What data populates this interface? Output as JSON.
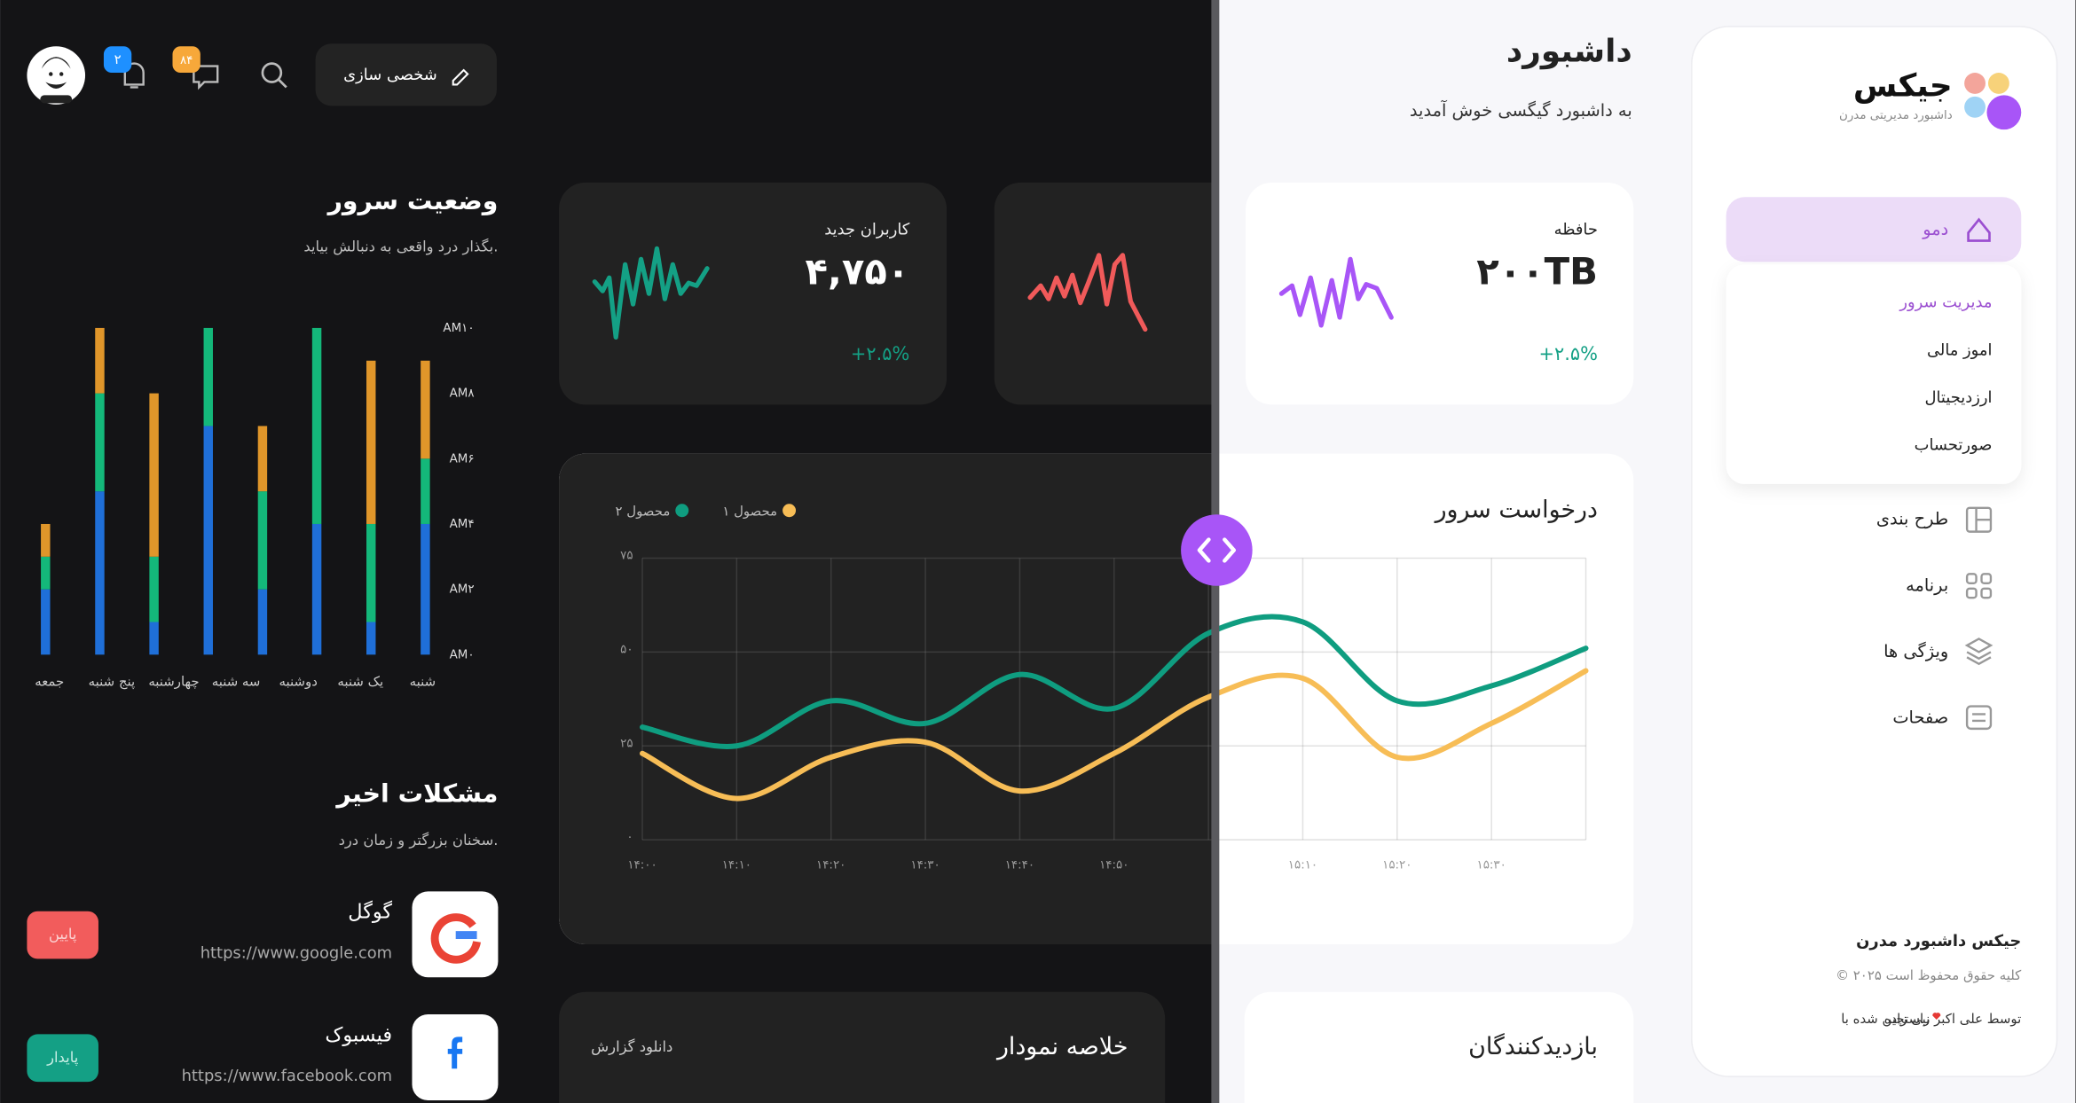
{
  "sidebar": {
    "brand": "جیکس",
    "tagline": "داشبورد مدیریتی مدرن",
    "menu": [
      {
        "label": "دمو",
        "submenu": [
          "مدیریت سرور",
          "اموز مالی",
          "ارزدیجیتال",
          "صورتحساب"
        ]
      },
      {
        "label": "طرح بندی"
      },
      {
        "label": "برنامه"
      },
      {
        "label": "ویژگی ها"
      },
      {
        "label": "صفحات"
      }
    ],
    "footer": {
      "title": "جیکس داشبورد مدرن",
      "copyright": "© ۲۰۲۵ کلیه حقوق محفوظ است",
      "credit_before": "راستچین شده با",
      "credit_after": "توسط علی اکبر نبی زاده"
    }
  },
  "header": {
    "title": "داشبورد",
    "subtitle": "به داشبورد گیگسی خوش آمدید",
    "customize": "شخصی سازی",
    "notifications": "۲",
    "messages": "۸۴"
  },
  "stats": [
    {
      "label": "کاربران جدید",
      "value": "۴,۷۵۰",
      "change": "+۲.۵%"
    },
    {
      "label": "حافظه",
      "value": "۲۰۰TB",
      "change": "+۲.۵%"
    }
  ],
  "chart_data": [
    {
      "type": "line",
      "title": "درخواست سرور",
      "categories": [
        "۱۴:۰۰",
        "۱۴:۱۰",
        "۱۴:۲۰",
        "۱۴:۳۰",
        "۱۴:۴۰",
        "۱۴:۵۰",
        null,
        "۱۵:۱۰",
        "۱۵:۲۰",
        "۱۵:۳۰",
        null
      ],
      "series": [
        {
          "name": "محصول ۱",
          "color": "#f7bd56",
          "values": [
            23,
            11,
            22,
            26,
            13,
            23,
            38,
            43,
            22,
            31,
            45
          ]
        },
        {
          "name": "محصول ۲",
          "color": "#0f9d80",
          "values": [
            30,
            25,
            37,
            31,
            44,
            35,
            55,
            58,
            37,
            41,
            51
          ]
        }
      ],
      "ylim": [
        0,
        75
      ],
      "yticks": [
        {
          "value": 0,
          "label": "۰"
        },
        {
          "value": 25,
          "label": "۲۵"
        },
        {
          "value": 50,
          "label": "۵۰"
        },
        {
          "value": 75,
          "label": "۷۵"
        }
      ],
      "grid": true
    },
    {
      "type": "bar",
      "stacked": true,
      "title": "وضعیت سرور",
      "subtitle": "بگذار درد واقعی به دنبالش بیاید.",
      "categories": [
        "شنبه",
        "یک شنبه",
        "دوشنبه",
        "سه شنبه",
        "چهارشنبه",
        "پنج شنبه",
        "جمعه",
        null
      ],
      "series": [
        {
          "color": "#1f6fd8",
          "values": [
            4,
            1,
            4,
            2,
            7,
            1,
            5,
            2
          ]
        },
        {
          "color": "#14b87a",
          "values": [
            2,
            3,
            6,
            3,
            3,
            2,
            3,
            1
          ]
        },
        {
          "color": "#e0962a",
          "values": [
            3,
            5,
            0,
            2,
            0,
            5,
            2,
            1
          ]
        }
      ],
      "ylim": [
        0,
        10
      ],
      "yticks": [
        {
          "value": 0,
          "label": "AM۰"
        },
        {
          "value": 2,
          "label": "AM۲"
        },
        {
          "value": 4,
          "label": "AM۴"
        },
        {
          "value": 6,
          "label": "AM۶"
        },
        {
          "value": 8,
          "label": "AM۸"
        },
        {
          "value": 10,
          "label": "AM۱۰"
        }
      ]
    }
  ],
  "issues": {
    "title": "مشکلات اخیر",
    "subtitle": "سخنان بزرگتر و زمان درد.",
    "items": [
      {
        "name": "گوگل",
        "url": "https://www.google.com",
        "status": "پایین"
      },
      {
        "name": "فیسبوک",
        "url": "https://www.facebook.com",
        "status": "پایدار"
      }
    ]
  },
  "bottom": {
    "summary": "خلاصه نمودار",
    "download": "دانلود گزارش",
    "visitors": "بازدیدکنندگان"
  }
}
